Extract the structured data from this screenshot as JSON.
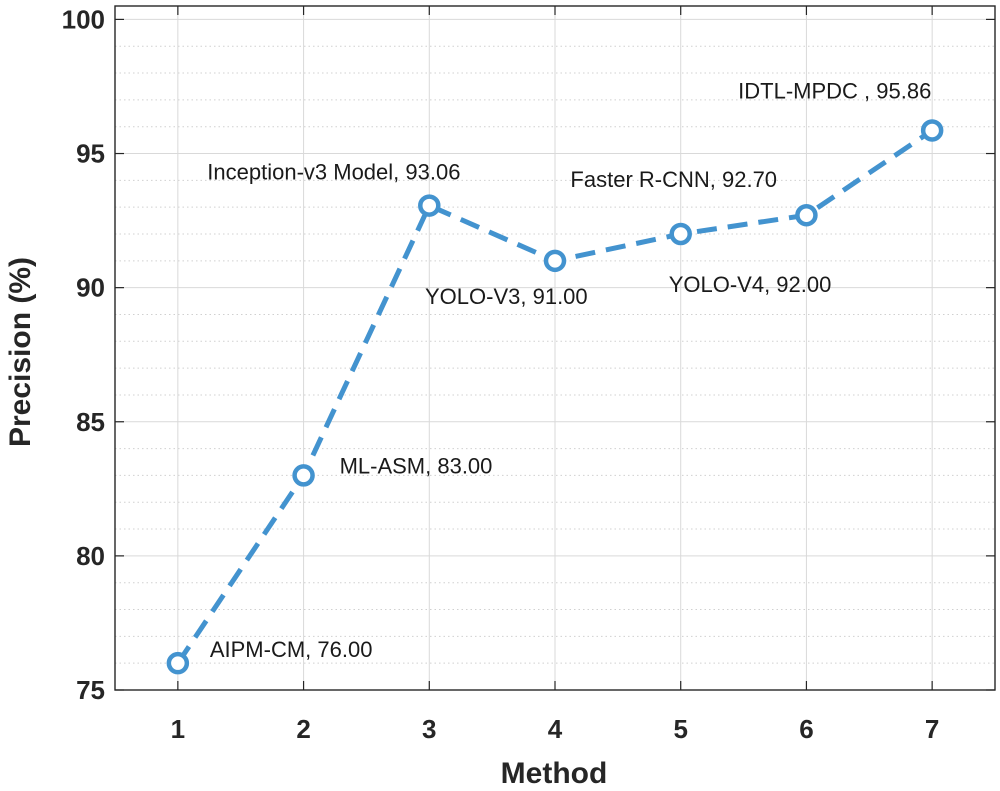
{
  "chart_data": {
    "type": "line",
    "xlabel": "Method",
    "ylabel": "Precision (%)",
    "x": [
      1,
      2,
      3,
      4,
      5,
      6,
      7
    ],
    "values": [
      76.0,
      83.0,
      93.06,
      91.0,
      92.0,
      92.7,
      95.86
    ],
    "point_labels": [
      "AIPM-CM, 76.00",
      "ML-ASM, 83.00",
      "Inception-v3 Model, 93.06",
      "YOLO-V3, 91.00",
      "YOLO-V4, 92.00",
      "Faster R-CNN, 92.70",
      "IDTL-MPDC , 95.86"
    ],
    "xlim": [
      0.5,
      7.5
    ],
    "ylim": [
      75,
      100.5
    ],
    "xticks": [
      "1",
      "2",
      "3",
      "4",
      "5",
      "6",
      "7"
    ],
    "yticks": [
      "75",
      "80",
      "85",
      "90",
      "95",
      "100"
    ],
    "grid": true,
    "minor_grid": true,
    "line_style": "dashed",
    "marker": "circle",
    "color": "#4393cf"
  }
}
